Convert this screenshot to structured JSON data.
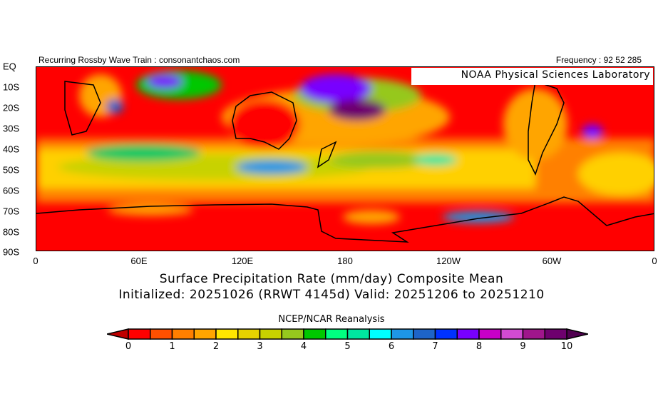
{
  "header": {
    "left": "Recurring Rossby Wave Train : consonantchaos.com",
    "right": "Frequency : 92 52 285",
    "lab": "NOAA Physical Sciences Laboratory"
  },
  "axes": {
    "y_labels": [
      "EQ",
      "10S",
      "20S",
      "30S",
      "40S",
      "50S",
      "60S",
      "70S",
      "80S",
      "90S"
    ],
    "x_labels": [
      "0",
      "60E",
      "120E",
      "180",
      "120W",
      "60W",
      "0"
    ]
  },
  "title": {
    "line1": "Surface Precipitation Rate (mm/day) Composite Mean",
    "line2": "Initialized: 20251026 (RRWT 4145d) Valid: 20251206 to 20251210"
  },
  "colorbar": {
    "source": "NCEP/NCAR Reanalysis",
    "labels": [
      "0",
      "1",
      "2",
      "3",
      "4",
      "5",
      "6",
      "7",
      "8",
      "9",
      "10"
    ],
    "under_color": "#c00000",
    "over_color": "#500050",
    "colors": [
      "#ff0000",
      "#ff5000",
      "#ff7f00",
      "#ffa500",
      "#ffe600",
      "#e6d200",
      "#c8d200",
      "#96c81e",
      "#00c800",
      "#00ff80",
      "#00e6a0",
      "#00ffff",
      "#1e96e6",
      "#1e64c8",
      "#0032ff",
      "#7800ff",
      "#c800c8",
      "#d24bd2",
      "#a0168c",
      "#6e006e"
    ]
  }
}
